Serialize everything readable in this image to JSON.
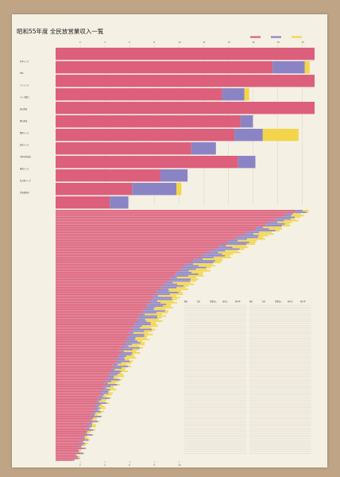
{
  "chart_data": {
    "type": "bar",
    "title": "昭和55年度 全民放営業収入一覧",
    "stacked": true,
    "orientation": "horizontal",
    "xlim": [
      0,
      21
    ],
    "grid": true,
    "legend_position": "top-right",
    "series": [
      {
        "name": "",
        "color": "#dc5f7c"
      },
      {
        "name": "",
        "color": "#8b84c4"
      },
      {
        "name": "",
        "color": "#f2d54a"
      }
    ],
    "x_ticks": [
      "2",
      "4",
      "6",
      "8",
      "10",
      "12",
      "14",
      "16",
      "18",
      "20"
    ],
    "bottom_ticks": [
      "2",
      "4",
      "6",
      "8",
      "10"
    ],
    "top_bars": [
      [
        21.0,
        0.0,
        0.0
      ],
      [
        17.6,
        2.6,
        0.4
      ],
      [
        21.0,
        0.0,
        0.0
      ],
      [
        13.5,
        1.8,
        0.4
      ],
      [
        21.0,
        0.0,
        0.0
      ],
      [
        15.0,
        1.0,
        0.0
      ],
      [
        14.5,
        2.3,
        2.9
      ],
      [
        11.0,
        2.0,
        0.0
      ],
      [
        14.8,
        1.4,
        0.0
      ],
      [
        8.5,
        2.2,
        0.0
      ],
      [
        6.2,
        3.6,
        0.4
      ],
      [
        4.4,
        1.5,
        0.0
      ]
    ],
    "top_labels": [
      "日本テレビ",
      "",
      "TBS",
      "",
      "フジテレビ",
      "",
      "テレビ朝日",
      "",
      "毎日放送",
      "",
      "朝日放送",
      "",
      "関西テレビ",
      "",
      "読売テレビ",
      "",
      "中部日本放送",
      "",
      "東海テレビ",
      "",
      "名古屋テレビ",
      "",
      "北海道放送"
    ],
    "curve_profile": [
      [
        0.0,
        20.5,
        0.95
      ],
      [
        0.05,
        19.2,
        0.9
      ],
      [
        0.12,
        16.5,
        0.86
      ],
      [
        0.22,
        12.8,
        0.82
      ],
      [
        0.32,
        10.4,
        0.8
      ],
      [
        0.45,
        8.3,
        0.78
      ],
      [
        0.6,
        6.2,
        0.8
      ],
      [
        0.75,
        4.3,
        0.82
      ],
      [
        0.88,
        3.0,
        0.85
      ],
      [
        1.0,
        1.8,
        0.88
      ]
    ],
    "curve_rows": 150,
    "table": {
      "columns": [
        {
          "header": [
            "順位",
            "社名",
            "営業収入",
            "前年比",
            "伸び率"
          ]
        },
        {
          "header": [
            "順位",
            "社名",
            "営業収入",
            "前年比",
            "伸び率"
          ]
        }
      ],
      "rows_per_column": 82
    }
  }
}
